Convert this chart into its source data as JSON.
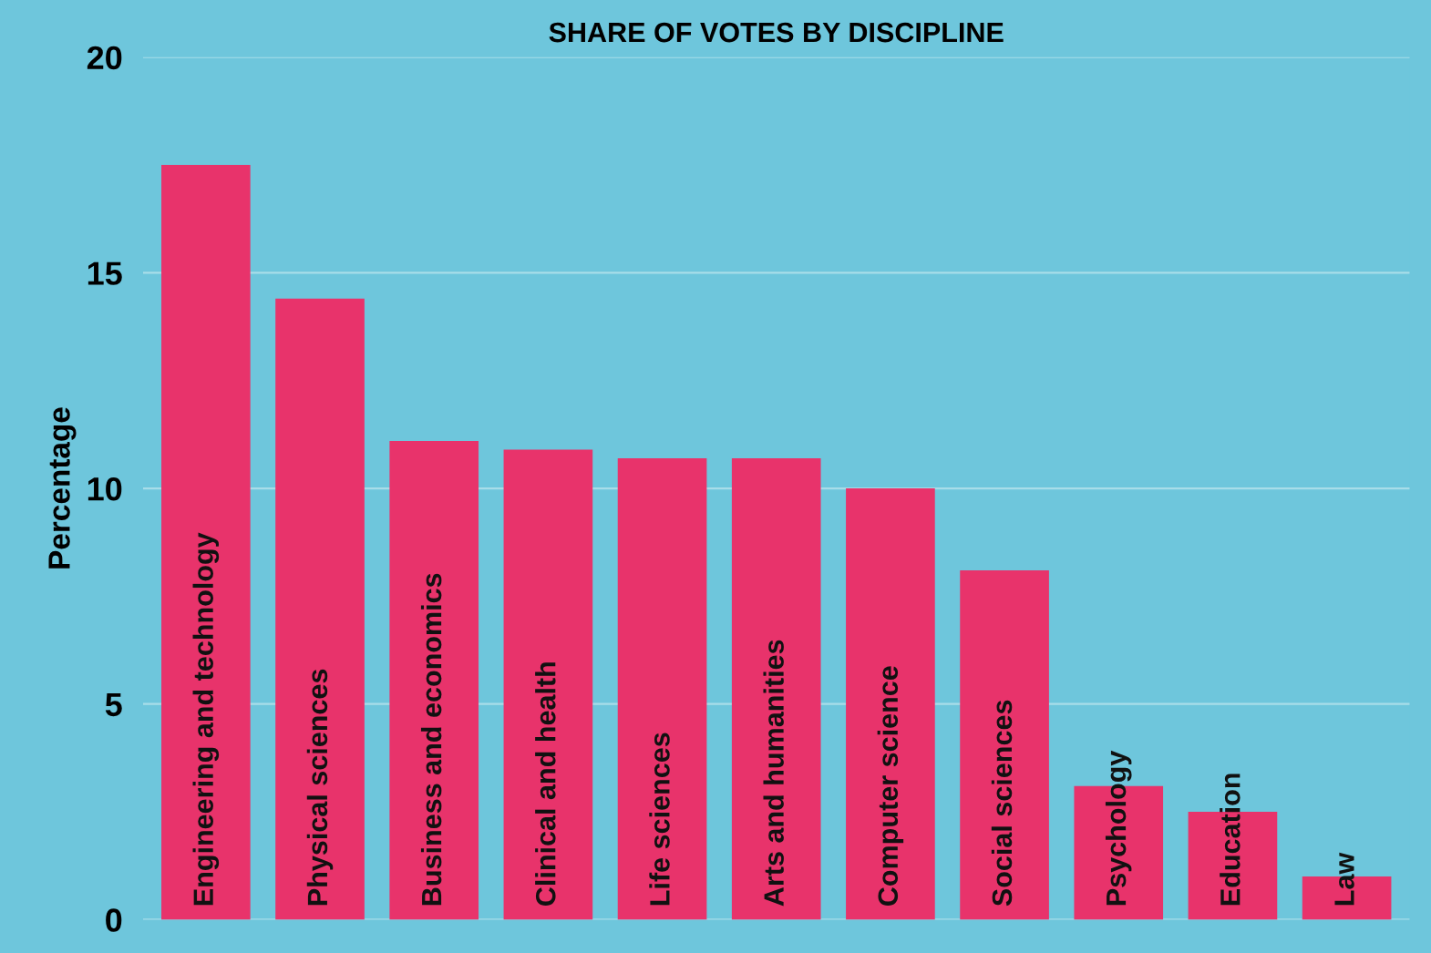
{
  "chart_data": {
    "type": "bar",
    "title": "SHARE OF VOTES BY DISCIPLINE",
    "ylabel": "Percentage",
    "categories": [
      "Engineering and technology",
      "Physical sciences",
      "Business and economics",
      "Clinical and health",
      "Life sciences",
      "Arts and humanities",
      "Computer science",
      "Social sciences",
      "Psychology",
      "Education",
      "Law"
    ],
    "values": [
      17.5,
      14.4,
      11.1,
      10.9,
      10.7,
      10.7,
      10.0,
      8.1,
      3.1,
      2.5,
      1.0
    ],
    "color": "#e8336b",
    "ylim": [
      0,
      20
    ],
    "yticks": [
      0,
      5,
      10,
      15,
      20
    ],
    "grid": "y"
  }
}
